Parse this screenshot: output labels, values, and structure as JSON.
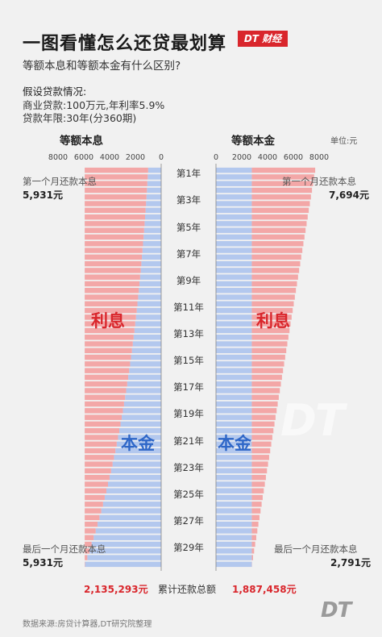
{
  "header": {
    "title": "一图看懂怎么还贷最划算",
    "logo_text": "DT 财经",
    "subtitle": "等额本息和等额本金有什么区别?",
    "assumptions_title": "假设贷款情况:",
    "assumption_1": "商业贷款:100万元,年利率5.9%",
    "assumption_2": "贷款年限:30年(分360期)"
  },
  "labels": {
    "left_panel": "等额本息",
    "right_panel": "等额本金",
    "unit": "单位:元",
    "interest": "利息",
    "principal": "本金",
    "first_month": "第一个月还款本息",
    "last_month": "最后一个月还款本息",
    "total_label": "累计还款总额"
  },
  "values": {
    "left_first": "5,931元",
    "right_first": "7,694元",
    "left_last": "5,931元",
    "right_last": "2,791元",
    "left_total": "2,135,293元",
    "right_total": "1,887,458元"
  },
  "footer": {
    "source": "数据来源:房贷计算器,DT研究院整理",
    "brand": "DT",
    "watermark": "DT"
  },
  "colors": {
    "interest": "#f3a7a7",
    "principal": "#b3c8ee",
    "accent_red": "#d9262c",
    "accent_blue": "#2f67c8"
  },
  "chart_data": [
    {
      "type": "bar",
      "orientation": "horizontal",
      "stacked": true,
      "title": "等额本息",
      "x_axis_reversed": true,
      "xlim": [
        0,
        8000
      ],
      "ticks": [
        "8000",
        "6000",
        "4000",
        "2000",
        "0"
      ],
      "y_categories_shown": [
        "第1年",
        "第3年",
        "第5年",
        "第7年",
        "第9年",
        "第11年",
        "第13年",
        "第15年",
        "第17年",
        "第19年",
        "第21年",
        "第23年",
        "第25年",
        "第27年",
        "第29年"
      ],
      "n_rows": 60,
      "series": [
        {
          "name": "本金",
          "values_per_row_start": 1014,
          "values_per_row_end": 5902
        },
        {
          "name": "利息",
          "values_per_row_start": 4917,
          "values_per_row_end": 29
        }
      ],
      "monthly_total": 5931,
      "unit": "元"
    },
    {
      "type": "bar",
      "orientation": "horizontal",
      "stacked": true,
      "title": "等额本金",
      "xlim": [
        0,
        8000
      ],
      "ticks": [
        "0",
        "2000",
        "4000",
        "6000",
        "8000"
      ],
      "y_categories_shown": [
        "第1年",
        "第3年",
        "第5年",
        "第7年",
        "第9年",
        "第11年",
        "第13年",
        "第15年",
        "第17年",
        "第19年",
        "第21年",
        "第23年",
        "第25年",
        "第27年",
        "第29年"
      ],
      "n_rows": 60,
      "series": [
        {
          "name": "本金",
          "constant_value": 2778
        },
        {
          "name": "利息",
          "values_per_row_start": 4916,
          "values_per_row_end": 13
        }
      ],
      "first_total": 7694,
      "last_total": 2791,
      "unit": "元"
    }
  ]
}
